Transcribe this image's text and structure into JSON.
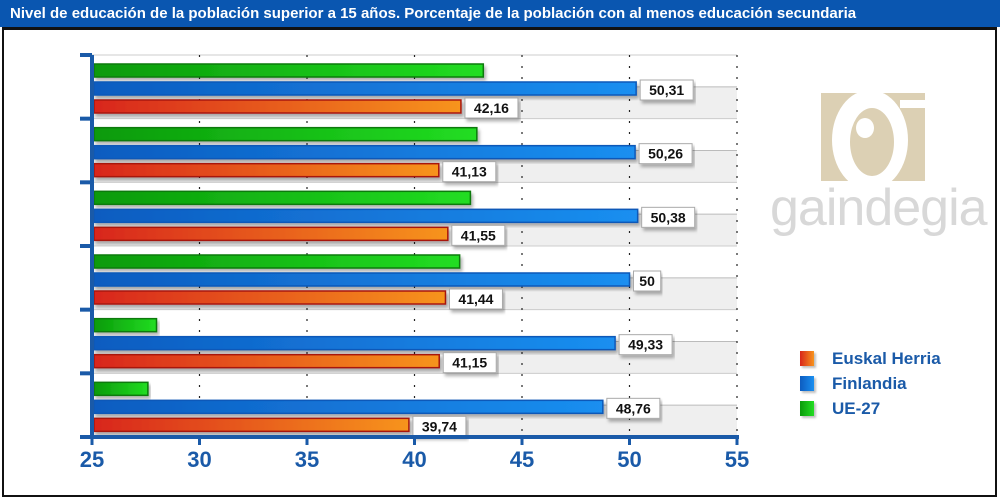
{
  "title": "Nivel de educación de la población superior a 15 años. Porcentaje de la población con al menos educación secundaria",
  "logo": {
    "text": "gaindegia",
    "icon": "gaindegia-logo-icon"
  },
  "colors": {
    "title_bg": "#0a56b0",
    "axis": "#1a5aa8",
    "euskal_herria": "#e8501a",
    "finlandia": "#1a72d8",
    "ue27": "#1cb81c",
    "logo_tan": "#dcd0b4",
    "logo_gray": "#d8d8d8"
  },
  "legend": [
    {
      "label": "Euskal Herria",
      "color": "#e8501a"
    },
    {
      "label": "Finlandia",
      "color": "#1a72d8"
    },
    {
      "label": "UE-27",
      "color": "#1cb81c"
    }
  ],
  "chart_data": {
    "type": "bar",
    "orientation": "horizontal",
    "title": "Nivel de educación de la población superior a 15 años. Porcentaje de la población con al menos educación secundaria",
    "xlabel": "",
    "ylabel": "",
    "xlim": [
      25,
      55
    ],
    "x_ticks": [
      "25",
      "30",
      "35",
      "40",
      "45",
      "50",
      "55"
    ],
    "categories": [
      "",
      "",
      "",
      "",
      "",
      ""
    ],
    "grid": true,
    "legend_position": "right",
    "series": [
      {
        "name": "UE-27",
        "values": [
          43.2,
          42.9,
          42.6,
          42.1,
          28.0,
          27.6
        ],
        "labels": [
          "",
          "",
          "",
          "",
          "",
          ""
        ]
      },
      {
        "name": "Finlandia",
        "values": [
          50.31,
          50.26,
          50.38,
          50.0,
          49.33,
          48.76
        ],
        "labels": [
          "50,31",
          "50,26",
          "50,38",
          "50",
          "49,33",
          "48,76"
        ]
      },
      {
        "name": "Euskal Herria",
        "values": [
          42.16,
          41.13,
          41.55,
          41.44,
          41.15,
          39.74
        ],
        "labels": [
          "42,16",
          "41,13",
          "41,55",
          "41,44",
          "41,15",
          "39,74"
        ]
      }
    ]
  }
}
